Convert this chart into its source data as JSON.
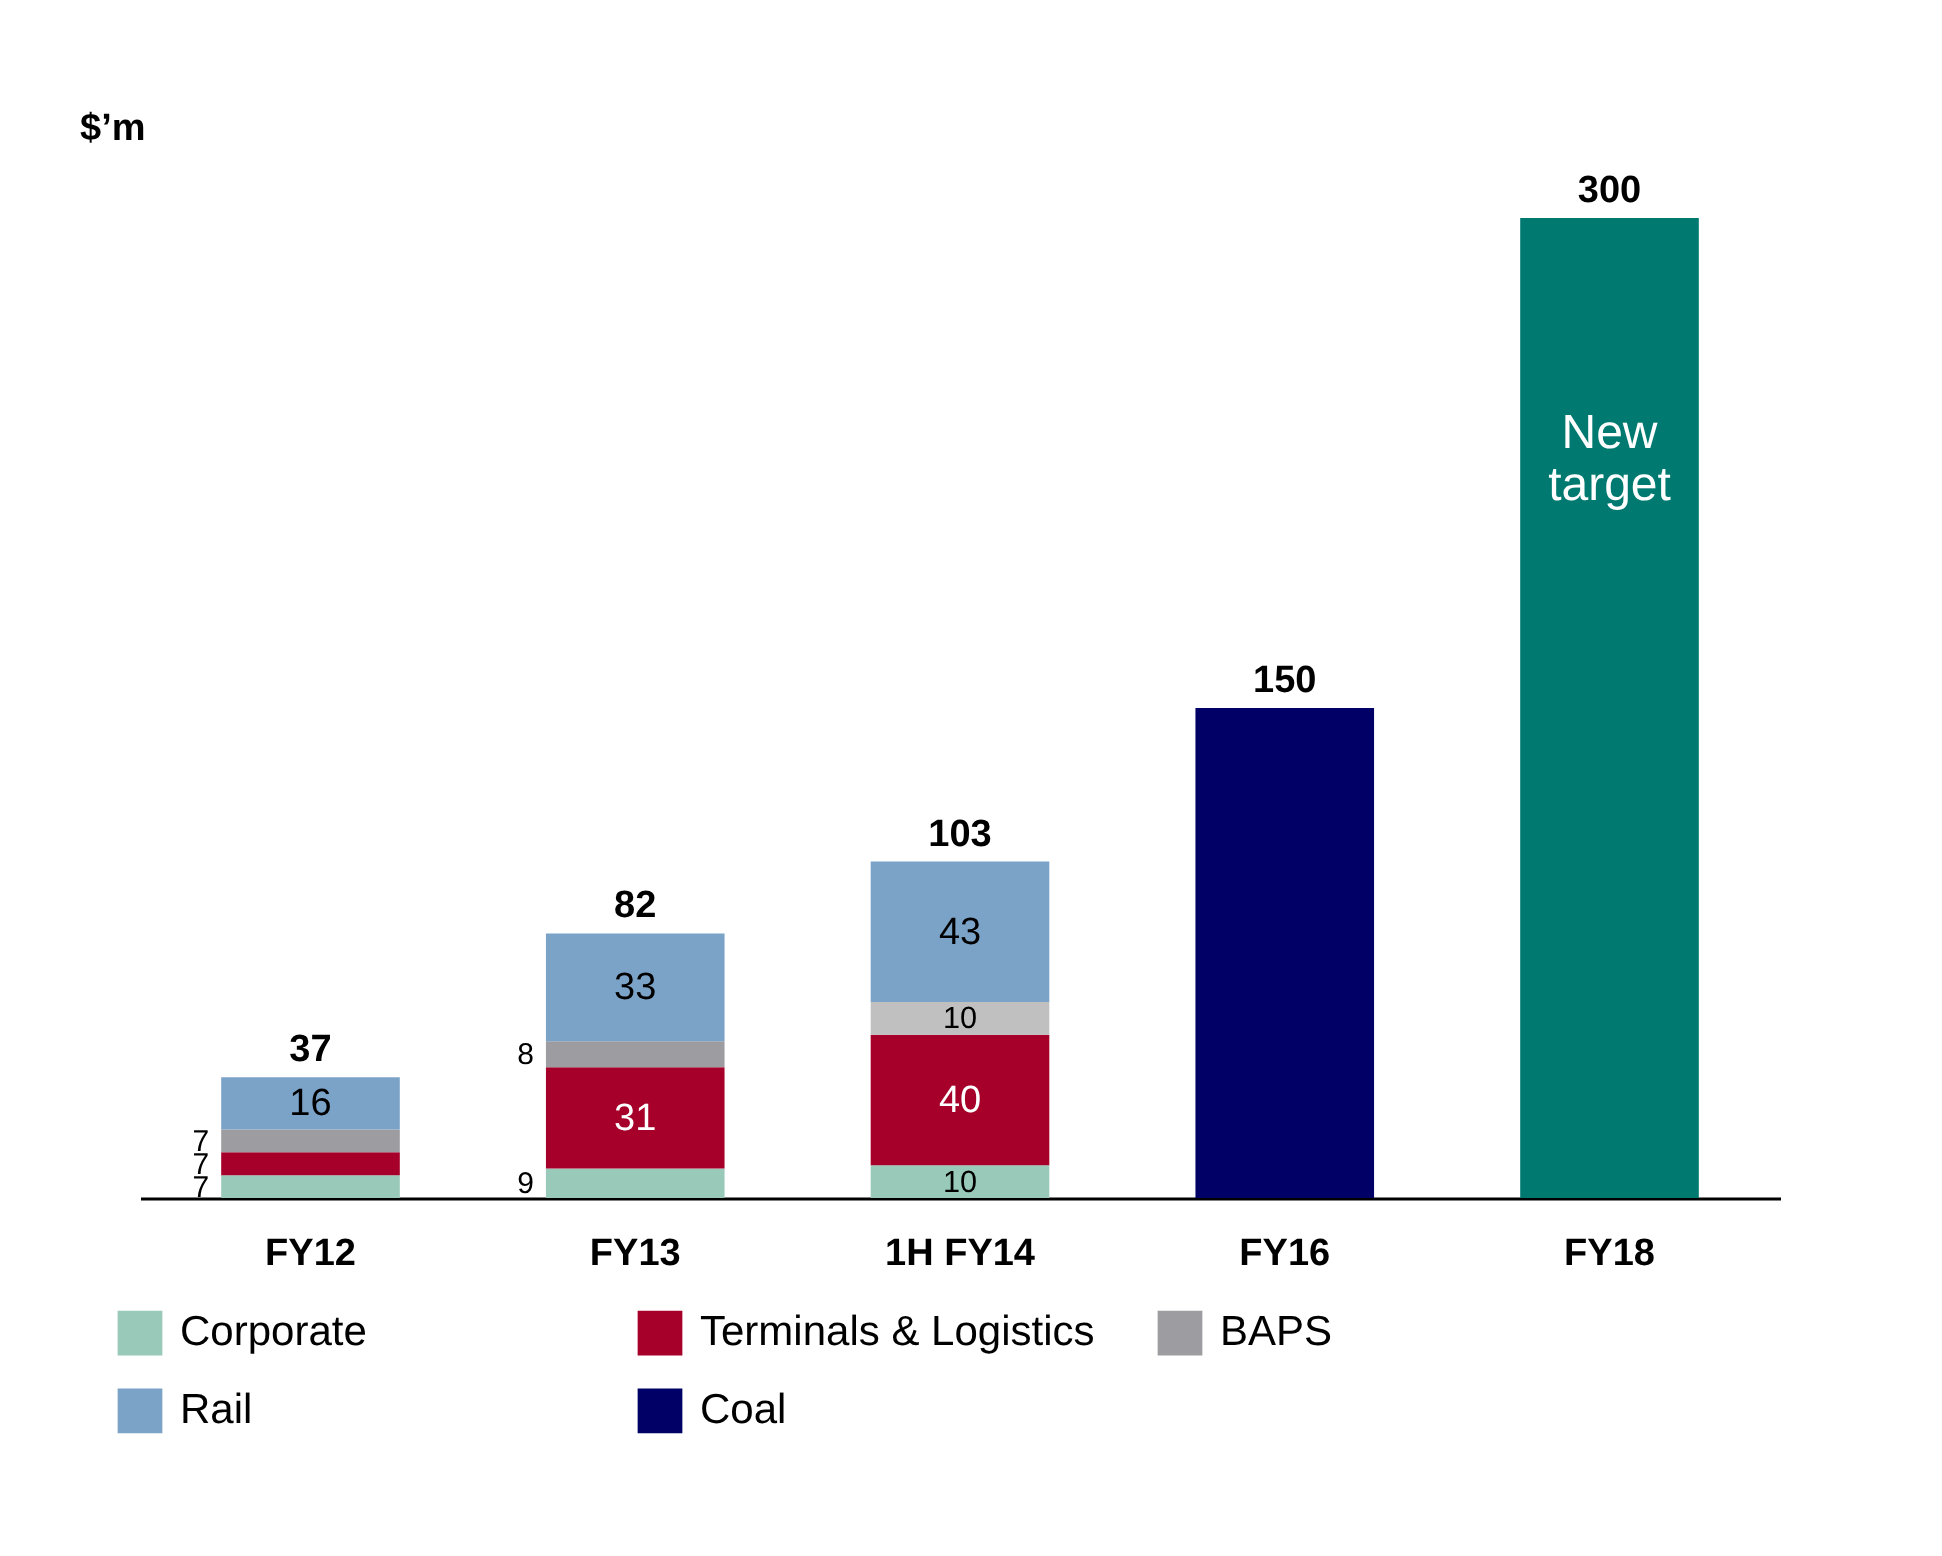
{
  "chart_data": {
    "type": "bar",
    "stacked": true,
    "ylabel": "$’m",
    "categories": [
      "FY12",
      "FY13",
      "1H FY14",
      "FY16",
      "FY18"
    ],
    "series": [
      {
        "name": "Corporate",
        "color": "#99c9b9",
        "values": [
          7,
          9,
          10,
          null,
          null
        ],
        "value_labels": [
          "7",
          "9",
          "10",
          null,
          null
        ]
      },
      {
        "name": "Terminals & Logistics",
        "color": "#a6002a",
        "values": [
          7,
          31,
          40,
          null,
          null
        ],
        "value_labels": [
          "7",
          "31",
          "40",
          null,
          null
        ]
      },
      {
        "name": "BAPS",
        "color": "#9d9da1",
        "colors": [
          "#9d9da1",
          "#9d9da1",
          "#c0c0c0",
          "#9d9da1",
          "#9d9da1"
        ],
        "values": [
          7,
          8,
          10,
          null,
          null
        ],
        "value_labels": [
          "7",
          "8",
          "10",
          null,
          null
        ]
      },
      {
        "name": "Rail",
        "color": "#7ba3c8",
        "values": [
          16,
          33,
          43,
          null,
          null
        ],
        "value_labels": [
          "16",
          "33",
          "43",
          null,
          null
        ]
      },
      {
        "name": "Coal",
        "color": "#000066",
        "values": [
          null,
          null,
          null,
          150,
          null
        ]
      },
      {
        "color": "#007a70",
        "values": [
          null,
          null,
          null,
          null,
          300
        ]
      }
    ],
    "totals": [
      "37",
      "82",
      "103",
      "150",
      "300"
    ],
    "annotations": [
      "New target"
    ],
    "legend": "bottom",
    "grid": false
  }
}
